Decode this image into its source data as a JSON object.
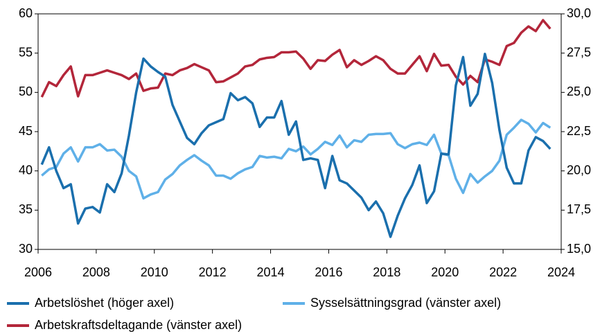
{
  "chart_data": {
    "type": "line",
    "x": [
      2006.125,
      2006.375,
      2006.625,
      2006.875,
      2007.125,
      2007.375,
      2007.625,
      2007.875,
      2008.125,
      2008.375,
      2008.625,
      2008.875,
      2009.125,
      2009.375,
      2009.625,
      2009.875,
      2010.125,
      2010.375,
      2010.625,
      2010.875,
      2011.125,
      2011.375,
      2011.625,
      2011.875,
      2012.125,
      2012.375,
      2012.625,
      2012.875,
      2013.125,
      2013.375,
      2013.625,
      2013.875,
      2014.125,
      2014.375,
      2014.625,
      2014.875,
      2015.125,
      2015.375,
      2015.625,
      2015.875,
      2016.125,
      2016.375,
      2016.625,
      2016.875,
      2017.125,
      2017.375,
      2017.625,
      2017.875,
      2018.125,
      2018.375,
      2018.625,
      2018.875,
      2019.125,
      2019.375,
      2019.625,
      2019.875,
      2020.125,
      2020.375,
      2020.625,
      2020.875,
      2021.125,
      2021.375,
      2021.625,
      2021.875,
      2022.125,
      2022.375,
      2022.625,
      2022.875,
      2023.125,
      2023.375,
      2023.625
    ],
    "series": [
      {
        "name": "Arbetslöshet (höger axel)",
        "color": "#1a6fad",
        "axis": "y2",
        "values": [
          20.4,
          21.5,
          20.0,
          18.9,
          19.15,
          16.65,
          17.6,
          17.7,
          17.35,
          19.15,
          18.65,
          19.85,
          22.25,
          25.0,
          27.15,
          26.65,
          26.3,
          26.0,
          24.2,
          23.15,
          22.1,
          21.7,
          22.4,
          22.9,
          23.1,
          23.3,
          24.95,
          24.5,
          24.7,
          24.3,
          22.8,
          23.4,
          23.4,
          24.45,
          22.3,
          23.15,
          20.7,
          20.8,
          20.7,
          18.9,
          20.95,
          19.4,
          19.2,
          18.75,
          18.3,
          17.5,
          18.05,
          17.3,
          15.8,
          17.15,
          18.25,
          19.1,
          20.35,
          17.95,
          18.7,
          21.1,
          21.05,
          25.45,
          27.25,
          24.15,
          24.9,
          27.45,
          25.6,
          22.6,
          20.2,
          19.2,
          19.2,
          21.3,
          22.15,
          21.9,
          21.4
        ]
      },
      {
        "name": "Sysselsättningsgrad (vänster axel)",
        "color": "#5fb0e8",
        "values": [
          39.4,
          40.2,
          40.5,
          42.2,
          43.0,
          41.2,
          43.0,
          43.0,
          43.4,
          42.6,
          42.7,
          41.8,
          40.0,
          39.3,
          36.5,
          37.0,
          37.3,
          38.9,
          39.6,
          40.7,
          41.4,
          42.0,
          41.3,
          40.7,
          39.4,
          39.4,
          39.0,
          39.7,
          40.2,
          40.5,
          41.9,
          41.7,
          41.8,
          41.6,
          42.8,
          42.5,
          43.1,
          42.1,
          42.8,
          43.7,
          43.3,
          44.5,
          43.0,
          43.9,
          43.7,
          44.6,
          44.7,
          44.7,
          44.8,
          43.4,
          42.9,
          43.4,
          43.6,
          43.3,
          44.6,
          42.2,
          42.0,
          39.0,
          37.2,
          39.6,
          38.5,
          39.3,
          40.0,
          41.3,
          44.6,
          45.5,
          46.5,
          46.0,
          44.9,
          46.1,
          45.5
        ]
      },
      {
        "name": "Arbetskraftsdeltagande (vänster axel)",
        "color": "#b3263a",
        "values": [
          49.4,
          51.3,
          50.8,
          52.2,
          53.3,
          49.5,
          52.2,
          52.2,
          52.5,
          52.8,
          52.5,
          52.2,
          51.7,
          52.4,
          50.2,
          50.5,
          50.6,
          52.4,
          52.2,
          52.8,
          53.1,
          53.6,
          53.2,
          52.8,
          51.3,
          51.4,
          51.9,
          52.4,
          53.3,
          53.5,
          54.2,
          54.4,
          54.5,
          55.1,
          55.1,
          55.2,
          54.3,
          53.0,
          54.1,
          54.0,
          54.8,
          55.4,
          53.2,
          54.1,
          53.5,
          54.0,
          54.6,
          54.1,
          53.0,
          52.4,
          52.4,
          53.5,
          54.6,
          52.7,
          54.9,
          53.4,
          53.5,
          52.0,
          51.0,
          52.1,
          51.3,
          54.2,
          53.9,
          53.5,
          55.9,
          56.3,
          57.6,
          58.4,
          57.8,
          59.2,
          58.1
        ]
      }
    ],
    "xlim": [
      2006,
      2024
    ],
    "xticks": [
      2006,
      2008,
      2010,
      2012,
      2014,
      2016,
      2018,
      2020,
      2022,
      2024
    ],
    "ylim": [
      30,
      60
    ],
    "yticks": [
      30,
      35,
      40,
      45,
      50,
      55,
      60
    ],
    "y2lim": [
      15,
      30
    ],
    "y2ticks": [
      {
        "value": 15,
        "label": "15,0"
      },
      {
        "value": 17.5,
        "label": "17,5"
      },
      {
        "value": 20,
        "label": "20,0"
      },
      {
        "value": 22.5,
        "label": "22,5"
      },
      {
        "value": 25,
        "label": "25,0"
      },
      {
        "value": 27.5,
        "label": "27,5"
      },
      {
        "value": 30,
        "label": "30,0"
      }
    ]
  }
}
